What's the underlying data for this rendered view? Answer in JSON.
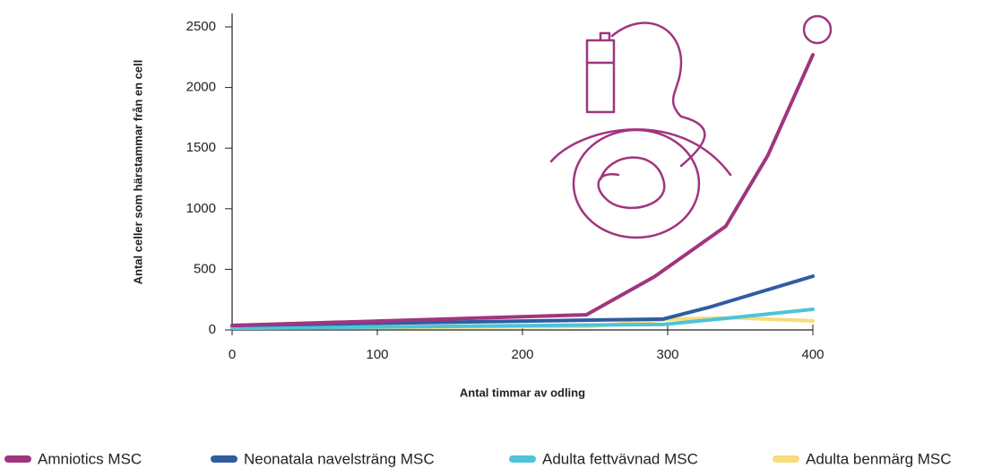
{
  "chart_data": {
    "type": "line",
    "y_label": "Antal celler som härstammar från en cell",
    "x_label": "Antal timmar av odling",
    "xlim": [
      0,
      400
    ],
    "xticks": [
      0,
      100,
      200,
      300,
      400
    ],
    "ylim": [
      0,
      2500
    ],
    "yticks": [
      0,
      500,
      1000,
      1500,
      2000,
      2500
    ],
    "grid": false,
    "series": [
      {
        "name": "Amniotics MSC",
        "color": "#a0357f",
        "x": [
          0,
          244,
          291,
          340,
          369,
          400
        ],
        "values": [
          37,
          125,
          440,
          855,
          1440,
          2270
        ]
      },
      {
        "name": "Neonatala navelsträng MSC",
        "color": "#2f5da0",
        "x": [
          0,
          297,
          328,
          400
        ],
        "values": [
          37,
          90,
          185,
          443
        ]
      },
      {
        "name": "Adulta fettvävnad MSC",
        "color": "#4fc3d8",
        "x": [
          0,
          297,
          346,
          400
        ],
        "values": [
          15,
          45,
          103,
          170
        ]
      },
      {
        "name": "Adulta benmärg MSC",
        "color": "#f7dc7a",
        "x": [
          0,
          248,
          303,
          346,
          400
        ],
        "values": [
          15,
          30,
          90,
          100,
          75
        ]
      }
    ]
  }
}
